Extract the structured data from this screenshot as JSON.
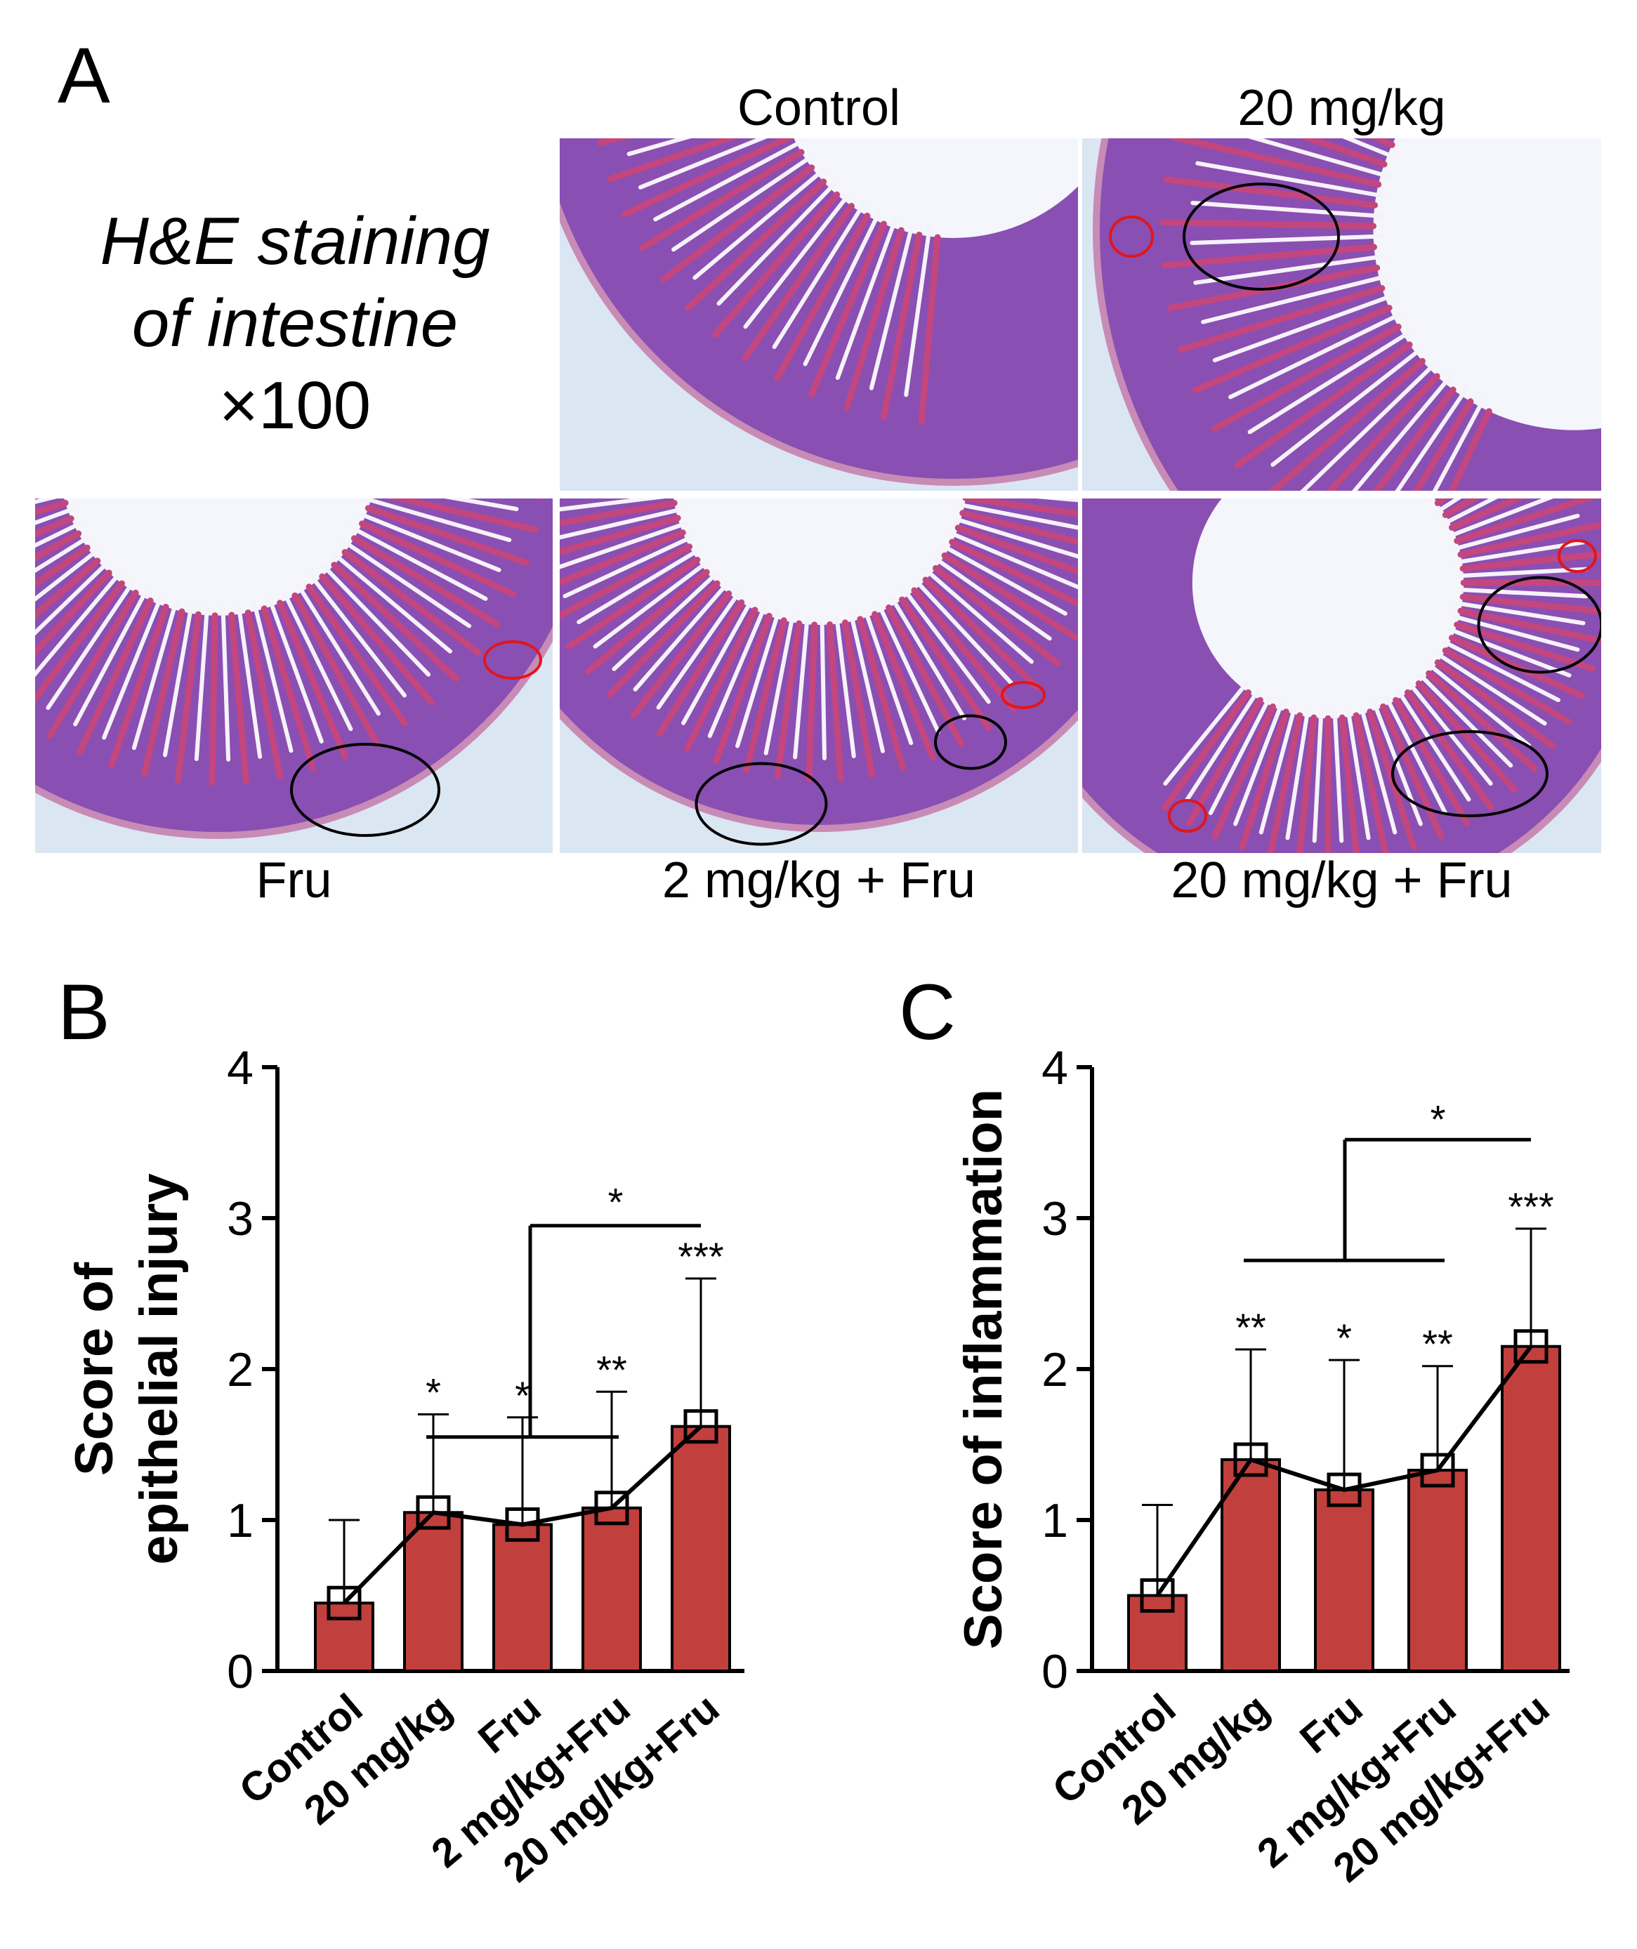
{
  "panel_a": {
    "letter": "A",
    "title_lines": [
      "H&E staining",
      "of intestine",
      "×100"
    ],
    "tiles": [
      {
        "label": "Control"
      },
      {
        "label": "20 mg/kg"
      },
      {
        "label": "Fru"
      },
      {
        "label": "2 mg/kg + Fru"
      },
      {
        "label": "20 mg/kg + Fru"
      }
    ],
    "colors": {
      "tissue": "#8a4fb2",
      "villus_pink": "#c4467e",
      "lumen": "#f4f6fb",
      "background": "#dbe6f3",
      "annotation_red": "#e0161b",
      "annotation_black": "#000000"
    }
  },
  "colors": {
    "bar": "#c13f3c",
    "bar_edge": "#000000",
    "line": "#000000"
  },
  "chart_data": [
    {
      "panel_letter": "B",
      "type": "bar",
      "ylabel_lines": [
        "Score of",
        "epithelial injury"
      ],
      "categories": [
        "Control",
        "20 mg/kg",
        "Fru",
        "2 mg/kg+Fru",
        "20 mg/kg+Fru"
      ],
      "values": [
        0.45,
        1.05,
        0.97,
        1.08,
        1.62
      ],
      "error_upper": [
        1.0,
        1.7,
        1.68,
        1.85,
        2.6
      ],
      "significance": [
        "",
        "*",
        "*",
        "**",
        "***"
      ],
      "comparison_star": "*",
      "ylim": [
        0,
        4
      ],
      "yticks": [
        0,
        1,
        2,
        3,
        4
      ],
      "grid": false,
      "overlay_line": true
    },
    {
      "panel_letter": "C",
      "type": "bar",
      "ylabel_lines": [
        "Score of inflammation"
      ],
      "categories": [
        "Control",
        "20 mg/kg",
        "Fru",
        "2 mg/kg+Fru",
        "20 mg/kg+Fru"
      ],
      "values": [
        0.5,
        1.4,
        1.2,
        1.33,
        2.15
      ],
      "error_upper": [
        1.1,
        2.13,
        2.06,
        2.02,
        2.93
      ],
      "significance": [
        "",
        "**",
        "*",
        "**",
        "***"
      ],
      "comparison_star": "*",
      "ylim": [
        0,
        4
      ],
      "yticks": [
        0,
        1,
        2,
        3,
        4
      ],
      "grid": false,
      "overlay_line": true
    }
  ]
}
